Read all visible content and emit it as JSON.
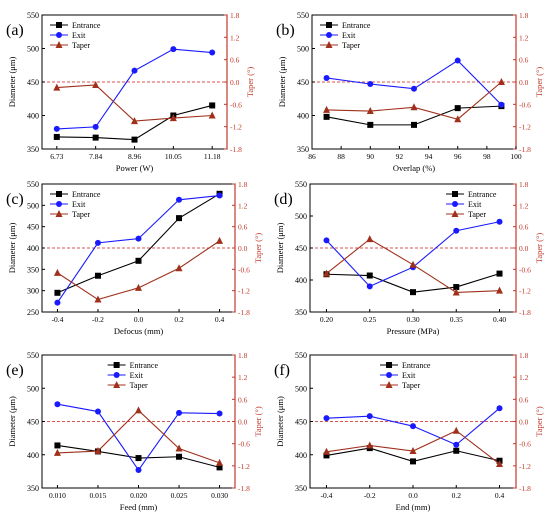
{
  "colors": {
    "entrance": "#000000",
    "exit": "#1a1aff",
    "taper": "#a0301c",
    "right_axis": "#c0392b",
    "ref_line": "#d9534f"
  },
  "chart_data": [
    {
      "panel": "(a)",
      "type": "line",
      "x_labels": [
        "6.73",
        "7.84",
        "8.96",
        "10.05",
        "11.18"
      ],
      "x_values": [
        6.73,
        7.84,
        8.96,
        10.05,
        11.18
      ],
      "xlabel": "Power (W)",
      "ylabel": "Diameter (μm)",
      "y2label": "Taper (°)",
      "ylim": [
        350,
        550
      ],
      "yticks": [
        350,
        400,
        450,
        500,
        550
      ],
      "y2lim": [
        -1.8,
        1.8
      ],
      "y2ticks": [
        "-1.8",
        "-1.2",
        "-0.6",
        "0.0",
        "0.6",
        "1.2",
        "1.8"
      ],
      "legend": "top-left",
      "ref_line_y2": 0,
      "series": [
        {
          "name": "Entrance",
          "axis": "left",
          "marker": "square",
          "values": [
            368,
            367,
            364,
            400,
            415
          ]
        },
        {
          "name": "Exit",
          "axis": "left",
          "marker": "circle",
          "values": [
            380,
            383,
            467,
            499,
            494
          ]
        },
        {
          "name": "Taper",
          "axis": "right",
          "marker": "triangle",
          "values": [
            -0.15,
            -0.08,
            -1.05,
            -0.97,
            -0.9
          ]
        }
      ]
    },
    {
      "panel": "(b)",
      "type": "line",
      "x_labels": [
        "86",
        "88",
        "90",
        "92",
        "94",
        "96",
        "98",
        "100"
      ],
      "x_values": [
        87,
        90,
        93,
        96,
        99
      ],
      "xlim": [
        86,
        100
      ],
      "xlabel": "Overlap (%)",
      "ylabel": "Diameter (μm)",
      "y2label": "Taper (°)",
      "ylim": [
        350,
        550
      ],
      "yticks": [
        350,
        400,
        450,
        500,
        550
      ],
      "y2lim": [
        -1.8,
        1.8
      ],
      "y2ticks": [
        "-1.8",
        "-1.2",
        "-0.6",
        "0.0",
        "0.6",
        "1.2",
        "1.8"
      ],
      "legend": "top-left",
      "ref_line_y2": 0,
      "series": [
        {
          "name": "Entrance",
          "axis": "left",
          "marker": "square",
          "values": [
            398,
            386,
            386,
            411,
            414
          ]
        },
        {
          "name": "Exit",
          "axis": "left",
          "marker": "circle",
          "values": [
            456,
            447,
            440,
            482,
            416
          ]
        },
        {
          "name": "Taper",
          "axis": "right",
          "marker": "triangle",
          "values": [
            -0.75,
            -0.78,
            -0.68,
            -1.0,
            0.0
          ]
        }
      ]
    },
    {
      "panel": "(c)",
      "type": "line",
      "x_labels": [
        "-0.4",
        "-0.2",
        "0.0",
        "0.2",
        "0.4"
      ],
      "x_values": [
        -0.4,
        -0.2,
        0.0,
        0.2,
        0.4
      ],
      "xlabel": "Defocus (mm)",
      "ylabel": "Diameter (μm)",
      "y2label": "Taper (°)",
      "ylim": [
        250,
        550
      ],
      "yticks": [
        250,
        300,
        350,
        400,
        450,
        500,
        550
      ],
      "y2lim": [
        -1.8,
        1.8
      ],
      "y2ticks": [
        "-1.8",
        "-1.2",
        "-0.6",
        "0.0",
        "0.6",
        "1.2",
        "1.8"
      ],
      "legend": "top-left",
      "ref_line_y2": 0,
      "series": [
        {
          "name": "Entrance",
          "axis": "left",
          "marker": "square",
          "values": [
            295,
            335,
            370,
            470,
            527
          ]
        },
        {
          "name": "Exit",
          "axis": "left",
          "marker": "circle",
          "values": [
            272,
            412,
            422,
            513,
            523
          ]
        },
        {
          "name": "Taper",
          "axis": "right",
          "marker": "triangle",
          "values": [
            -0.7,
            -1.45,
            -1.12,
            -0.57,
            0.2
          ]
        }
      ]
    },
    {
      "panel": "(d)",
      "type": "line",
      "x_labels": [
        "0.20",
        "0.25",
        "0.30",
        "0.35",
        "0.40"
      ],
      "x_values": [
        0.2,
        0.25,
        0.3,
        0.35,
        0.4
      ],
      "xlabel": "Pressure (MPa)",
      "ylabel": "Diameter (μm)",
      "y2label": "Taper (°)",
      "ylim": [
        350,
        550
      ],
      "yticks": [
        350,
        400,
        450,
        500,
        550
      ],
      "y2lim": [
        -1.8,
        1.8
      ],
      "y2ticks": [
        "-1.8",
        "-1.2",
        "-0.6",
        "0.0",
        "0.6",
        "1.2",
        "1.8"
      ],
      "legend": "top-right",
      "ref_line_y2": 0,
      "series": [
        {
          "name": "Entrance",
          "axis": "left",
          "marker": "square",
          "values": [
            409,
            407,
            381,
            389,
            410
          ]
        },
        {
          "name": "Exit",
          "axis": "left",
          "marker": "circle",
          "values": [
            462,
            390,
            420,
            477,
            491
          ]
        },
        {
          "name": "Taper",
          "axis": "right",
          "marker": "triangle",
          "values": [
            -0.72,
            0.25,
            -0.47,
            -1.25,
            -1.2
          ]
        }
      ]
    },
    {
      "panel": "(e)",
      "type": "line",
      "x_labels": [
        "0.010",
        "0.015",
        "0.020",
        "0.025",
        "0.030"
      ],
      "x_values": [
        0.01,
        0.015,
        0.02,
        0.025,
        0.03
      ],
      "xlabel": "Feed (mm)",
      "ylabel": "Diameter (μm)",
      "y2label": "Taper (°)",
      "ylim": [
        350,
        550
      ],
      "yticks": [
        350,
        400,
        450,
        500,
        550
      ],
      "y2lim": [
        -1.8,
        1.8
      ],
      "y2ticks": [
        "-1.8",
        "-1.2",
        "-0.6",
        "0.0",
        "0.6",
        "1.2",
        "1.8"
      ],
      "legend": "top-center",
      "ref_line_y2": 0,
      "series": [
        {
          "name": "Entrance",
          "axis": "left",
          "marker": "square",
          "values": [
            414,
            405,
            395,
            397,
            381
          ]
        },
        {
          "name": "Exit",
          "axis": "left",
          "marker": "circle",
          "values": [
            476,
            465,
            377,
            463,
            462
          ]
        },
        {
          "name": "Taper",
          "axis": "right",
          "marker": "triangle",
          "values": [
            -0.85,
            -0.8,
            0.3,
            -0.73,
            -1.12
          ]
        }
      ]
    },
    {
      "panel": "(f)",
      "type": "line",
      "x_labels": [
        "-0.4",
        "-0.2",
        "0.0",
        "0.2",
        "0.4"
      ],
      "x_values": [
        -0.4,
        -0.2,
        0.0,
        0.2,
        0.4
      ],
      "xlabel": "End (mm)",
      "ylabel": "Diameter (μm)",
      "y2label": "Taper (°)",
      "ylim": [
        350,
        550
      ],
      "yticks": [
        350,
        400,
        450,
        500,
        550
      ],
      "y2lim": [
        -1.8,
        1.8
      ],
      "y2ticks": [
        "-1.8",
        "-1.2",
        "-0.6",
        "0.0",
        "0.6",
        "1.2",
        "1.8"
      ],
      "legend": "top-center",
      "ref_line_y2": 0,
      "series": [
        {
          "name": "Entrance",
          "axis": "left",
          "marker": "square",
          "values": [
            399,
            410,
            390,
            406,
            391
          ]
        },
        {
          "name": "Exit",
          "axis": "left",
          "marker": "circle",
          "values": [
            455,
            458,
            443,
            415,
            470
          ]
        },
        {
          "name": "Taper",
          "axis": "right",
          "marker": "triangle",
          "values": [
            -0.82,
            -0.65,
            -0.8,
            -0.25,
            -1.15
          ]
        }
      ]
    }
  ]
}
